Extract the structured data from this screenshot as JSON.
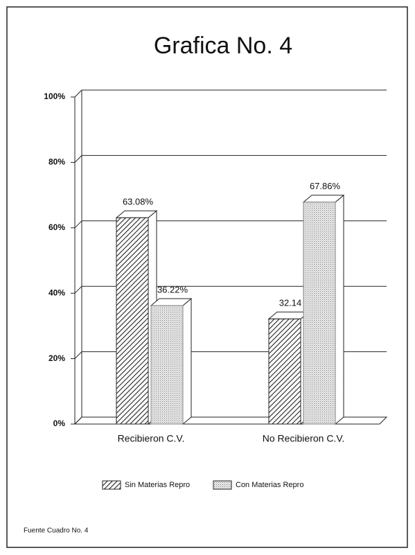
{
  "chart_data": {
    "type": "bar3d",
    "title": "Grafica No. 4",
    "categories": [
      "Recibieron C.V.",
      "No Recibieron C.V."
    ],
    "series": [
      {
        "name": "Sin Materias Repro",
        "color": "#222222",
        "values": [
          63.08,
          32.14
        ],
        "value_labels": [
          "63.08%",
          "32.14"
        ]
      },
      {
        "name": "Con Materias Repro",
        "color": "#888888",
        "values": [
          36.22,
          67.86
        ],
        "value_labels": [
          "36.22%",
          "67.86%"
        ]
      }
    ],
    "ylim": [
      0,
      100
    ],
    "yticks": [
      {
        "value": 0,
        "label": "0%"
      },
      {
        "value": 20,
        "label": "20%"
      },
      {
        "value": 40,
        "label": "40%"
      },
      {
        "value": 60,
        "label": "60%"
      },
      {
        "value": 80,
        "label": "80%"
      },
      {
        "value": 100,
        "label": "100%"
      }
    ],
    "grid": true,
    "legend": "bottom",
    "note": "Fuente Cuadro No. 4"
  }
}
